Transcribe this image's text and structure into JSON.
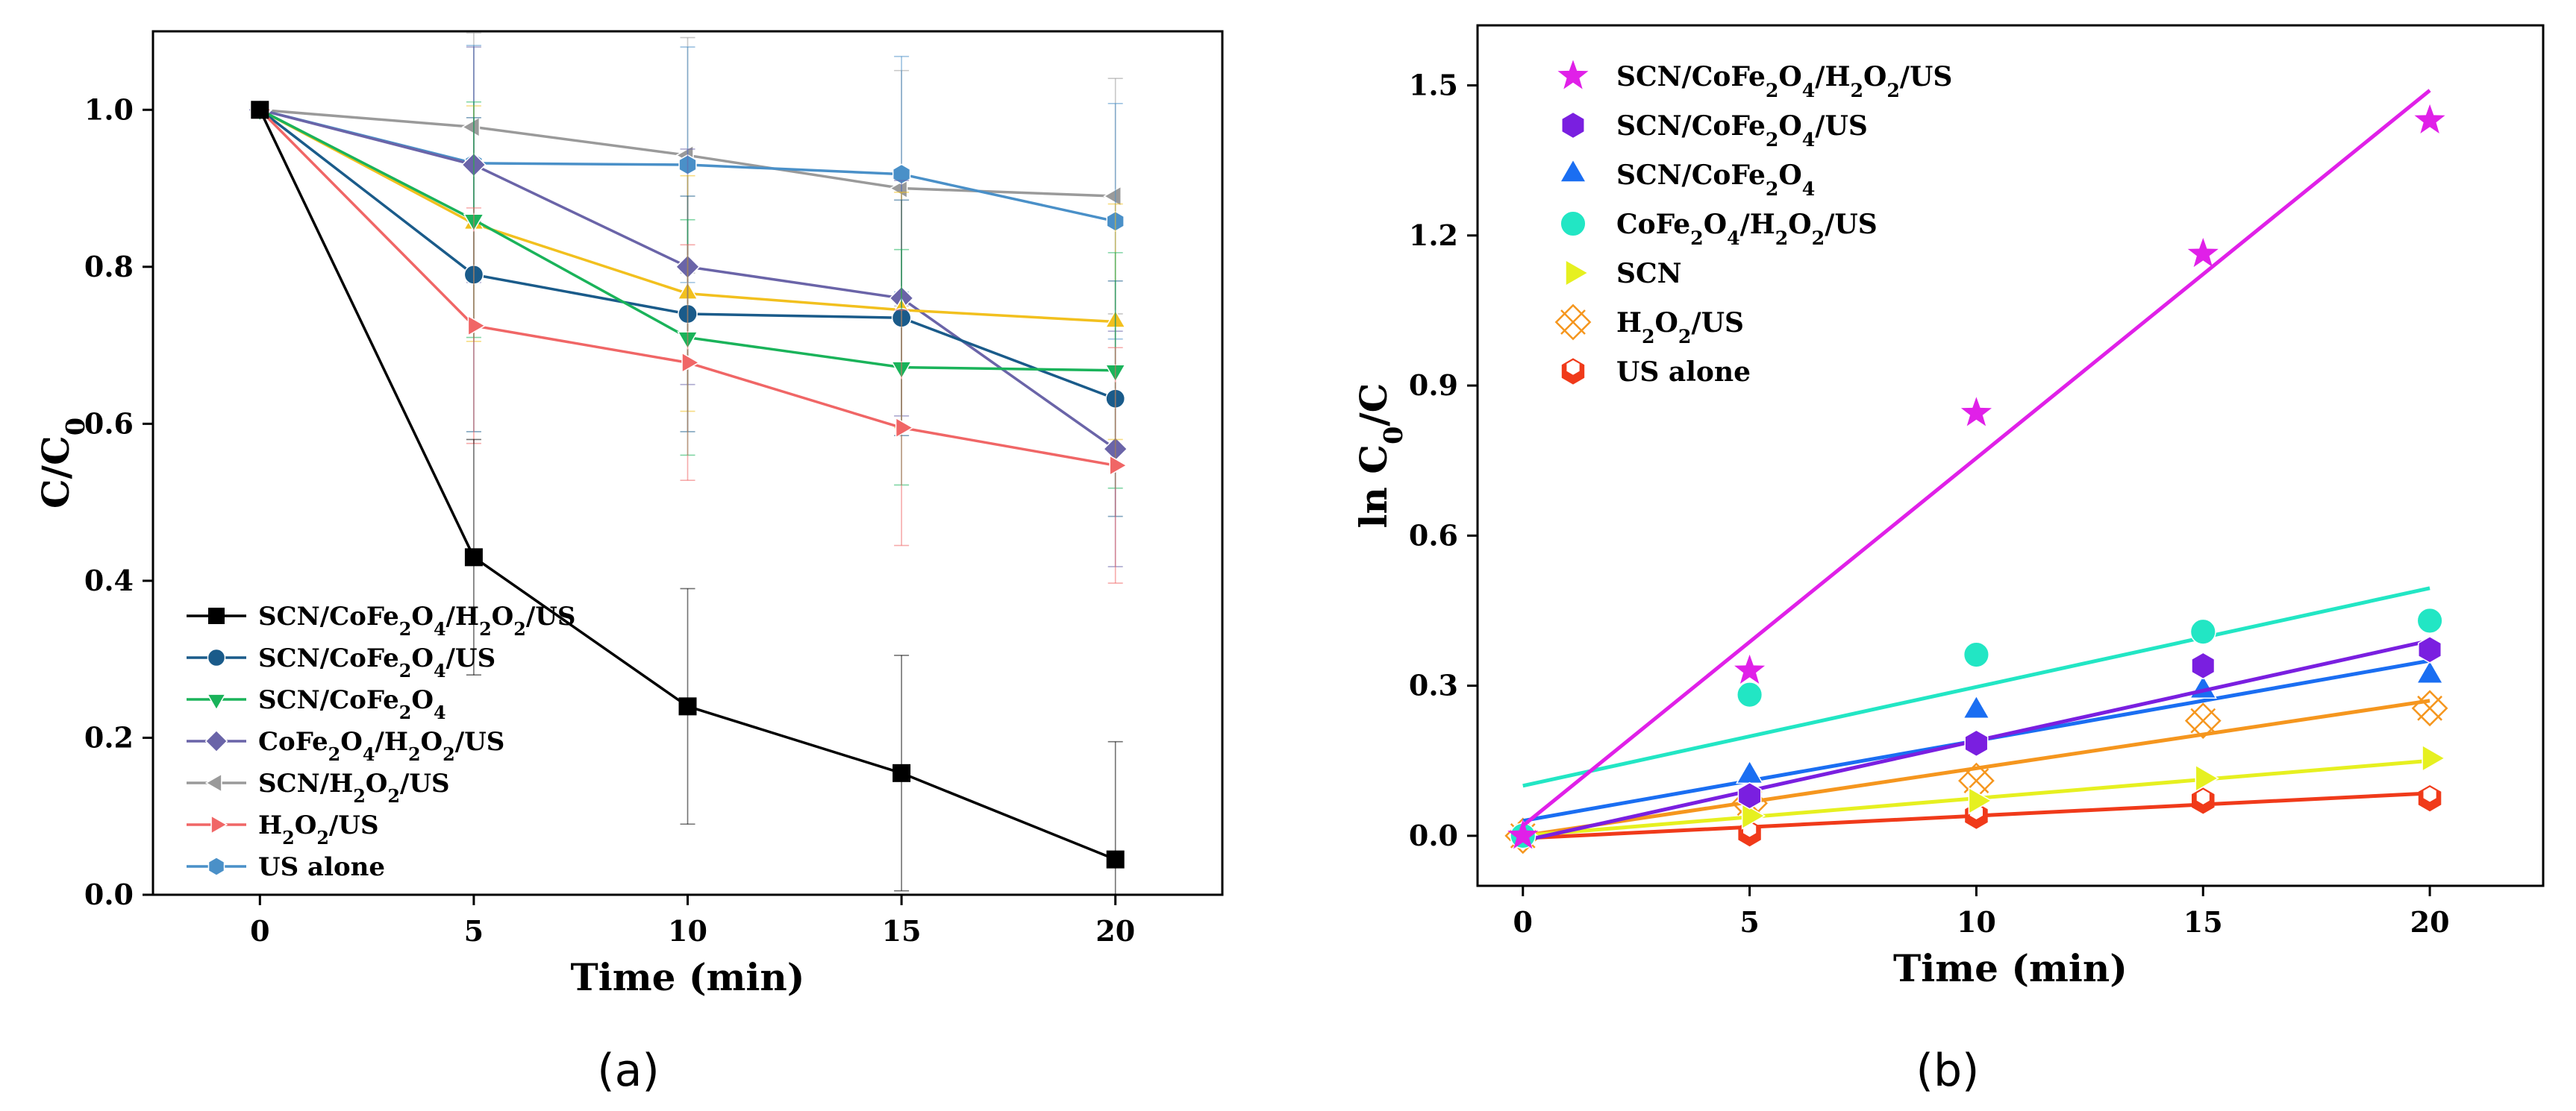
{
  "chart_data": [
    {
      "panel_label": "(a)",
      "type": "line",
      "xlabel": "Time (min)",
      "ylabel": {
        "main": "C/C",
        "sub": "0"
      },
      "xlim": [
        -2.5,
        22.5
      ],
      "ylim": [
        0,
        1.1
      ],
      "x_ticks": [
        0,
        5,
        10,
        15,
        20
      ],
      "y_ticks": [
        0.0,
        0.2,
        0.4,
        0.6,
        0.8,
        1.0
      ],
      "x": [
        0,
        5,
        10,
        15,
        20
      ],
      "series": [
        {
          "name": "SCN/CoFe2O4/H2O2/US",
          "legend": [
            [
              "t",
              "SCN/CoFe"
            ],
            [
              "s",
              "2"
            ],
            [
              "t",
              "O"
            ],
            [
              "s",
              "4"
            ],
            [
              "t",
              "/H"
            ],
            [
              "s",
              "2"
            ],
            [
              "t",
              "O"
            ],
            [
              "s",
              "2"
            ],
            [
              "t",
              "/US"
            ]
          ],
          "color": "#000000",
          "marker": "square",
          "values": [
            1.0,
            0.43,
            0.24,
            0.155,
            0.045
          ],
          "errors": [
            0,
            0.15,
            0.15,
            0.15,
            0.15
          ]
        },
        {
          "name": "SCN/CoFe2O4/US",
          "legend": [
            [
              "t",
              "SCN/CoFe"
            ],
            [
              "s",
              "2"
            ],
            [
              "t",
              "O"
            ],
            [
              "s",
              "4"
            ],
            [
              "t",
              "/US"
            ]
          ],
          "color": "#1a5b8a",
          "marker": "circle",
          "values": [
            1.0,
            0.79,
            0.74,
            0.735,
            0.632
          ],
          "errors": [
            0,
            0.2,
            0.15,
            0.15,
            0.15
          ]
        },
        {
          "name": "SCN/CoFe2O4",
          "legend": [
            [
              "t",
              "SCN/CoFe"
            ],
            [
              "s",
              "2"
            ],
            [
              "t",
              "O"
            ],
            [
              "s",
              "4"
            ]
          ],
          "color": "#1ab35a",
          "marker": "triangle-down",
          "values": [
            1.0,
            0.86,
            0.71,
            0.672,
            0.668
          ],
          "errors": [
            0,
            0.15,
            0.15,
            0.15,
            0.15
          ]
        },
        {
          "name": "CoFe2O4/H2O2/US",
          "legend": [
            [
              "t",
              "CoFe"
            ],
            [
              "s",
              "2"
            ],
            [
              "t",
              "O"
            ],
            [
              "s",
              "4"
            ],
            [
              "t",
              "/H"
            ],
            [
              "s",
              "2"
            ],
            [
              "t",
              "O"
            ],
            [
              "s",
              "2"
            ],
            [
              "t",
              "/US"
            ]
          ],
          "color": "#6a64a8",
          "marker": "diamond",
          "values": [
            1.0,
            0.93,
            0.8,
            0.76,
            0.568
          ],
          "errors": [
            0,
            0.15,
            0.15,
            0.15,
            0.15
          ]
        },
        {
          "name": "SCN/H2O2/US",
          "legend": [
            [
              "t",
              "SCN/H"
            ],
            [
              "s",
              "2"
            ],
            [
              "t",
              "O"
            ],
            [
              "s",
              "2"
            ],
            [
              "t",
              "/US"
            ]
          ],
          "color": "#9a9a9a",
          "marker": "triangle-left",
          "values": [
            1.0,
            0.978,
            0.942,
            0.9,
            0.89
          ],
          "errors": [
            0,
            0.12,
            0.15,
            0.15,
            0.15
          ]
        },
        {
          "name": "H2O2/US",
          "legend": [
            [
              "t",
              "H"
            ],
            [
              "s",
              "2"
            ],
            [
              "t",
              "O"
            ],
            [
              "s",
              "2"
            ],
            [
              "t",
              "/US"
            ]
          ],
          "color": "#f06666",
          "marker": "triangle-right",
          "values": [
            1.0,
            0.725,
            0.678,
            0.595,
            0.547
          ],
          "errors": [
            0,
            0.15,
            0.15,
            0.15,
            0.15
          ]
        },
        {
          "name": "US alone",
          "legend": [
            [
              "t",
              "US alone"
            ]
          ],
          "color": "#4a90c8",
          "marker": "hexagon",
          "values": [
            1.0,
            0.932,
            0.93,
            0.918,
            0.858
          ],
          "errors": [
            0,
            0.15,
            0.15,
            0.15,
            0.15
          ]
        },
        {
          "name": "(unlabeled yellow)",
          "legend": null,
          "color": "#f2c01e",
          "marker": "triangle-up",
          "values": [
            1.0,
            0.855,
            0.766,
            0.745,
            0.73
          ],
          "errors": [
            0,
            0.15,
            0.15,
            0.15,
            0.15
          ]
        }
      ]
    },
    {
      "panel_label": "(b)",
      "type": "scatter",
      "xlabel": "Time (min)",
      "ylabel": {
        "main": "ln C",
        "sub": "0",
        "tail": "/C"
      },
      "xlim": [
        -1,
        22.5
      ],
      "ylim": [
        -0.1,
        1.62
      ],
      "x_ticks": [
        0,
        5,
        10,
        15,
        20
      ],
      "y_ticks": [
        0.0,
        0.3,
        0.6,
        0.9,
        1.2,
        1.5
      ],
      "y_tick_labels": [
        "0.0",
        "0.3",
        "0.6",
        "0.9",
        "1.2",
        "1.5"
      ],
      "x": [
        0,
        5,
        10,
        15,
        20
      ],
      "series": [
        {
          "name": "SCN/CoFe2O4/H2O2/US",
          "legend": [
            [
              "t",
              "SCN/CoFe"
            ],
            [
              "s",
              "2"
            ],
            [
              "t",
              "O"
            ],
            [
              "s",
              "4"
            ],
            [
              "t",
              "/H"
            ],
            [
              "s",
              "2"
            ],
            [
              "t",
              "O"
            ],
            [
              "s",
              "2"
            ],
            [
              "t",
              "/US"
            ]
          ],
          "color": "#e020e8",
          "marker": "star",
          "values": [
            0.0,
            0.33,
            0.845,
            1.163,
            1.43
          ],
          "fit": [
            0.02,
            1.49
          ]
        },
        {
          "name": "SCN/CoFe2O4/US",
          "legend": [
            [
              "t",
              "SCN/CoFe"
            ],
            [
              "s",
              "2"
            ],
            [
              "t",
              "O"
            ],
            [
              "s",
              "4"
            ],
            [
              "t",
              "/US"
            ]
          ],
          "color": "#7a1fe0",
          "marker": "hexagon",
          "values": [
            0.0,
            0.08,
            0.185,
            0.34,
            0.372
          ],
          "fit": [
            -0.01,
            0.39
          ]
        },
        {
          "name": "SCN/CoFe2O4",
          "legend": [
            [
              "t",
              "SCN/CoFe"
            ],
            [
              "s",
              "2"
            ],
            [
              "t",
              "O"
            ],
            [
              "s",
              "4"
            ]
          ],
          "color": "#1a6ef2",
          "marker": "triangle-up",
          "values": [
            0.0,
            0.12,
            0.25,
            0.29,
            0.32
          ],
          "fit": [
            0.03,
            0.35
          ]
        },
        {
          "name": "CoFe2O4/H2O2/US",
          "legend": [
            [
              "t",
              "CoFe"
            ],
            [
              "s",
              "2"
            ],
            [
              "t",
              "O"
            ],
            [
              "s",
              "4"
            ],
            [
              "t",
              "/H"
            ],
            [
              "s",
              "2"
            ],
            [
              "t",
              "O"
            ],
            [
              "s",
              "2"
            ],
            [
              "t",
              "/US"
            ]
          ],
          "color": "#22e6c4",
          "marker": "circle",
          "values": [
            0.0,
            0.282,
            0.362,
            0.408,
            0.43
          ],
          "fit": [
            0.1,
            0.495
          ]
        },
        {
          "name": "SCN",
          "legend": [
            [
              "t",
              "SCN"
            ]
          ],
          "color": "#e6f020",
          "marker": "triangle-right",
          "values": [
            0.0,
            0.04,
            0.07,
            0.115,
            0.155
          ],
          "fit": [
            0.0,
            0.15
          ]
        },
        {
          "name": "H2O2/US",
          "legend": [
            [
              "t",
              "H"
            ],
            [
              "s",
              "2"
            ],
            [
              "t",
              "O"
            ],
            [
              "s",
              "2"
            ],
            [
              "t",
              "/US"
            ]
          ],
          "color": "#f5961e",
          "marker": "crossed-square",
          "values": [
            0.0,
            0.065,
            0.11,
            0.23,
            0.255
          ],
          "fit": [
            0.0,
            0.27
          ]
        },
        {
          "name": "US alone",
          "legend": [
            [
              "t",
              "US alone"
            ]
          ],
          "color": "#f03a1a",
          "marker": "half-hexagon",
          "values": [
            0.0,
            0.005,
            0.04,
            0.07,
            0.075
          ],
          "fit": [
            -0.005,
            0.085
          ]
        }
      ]
    }
  ]
}
